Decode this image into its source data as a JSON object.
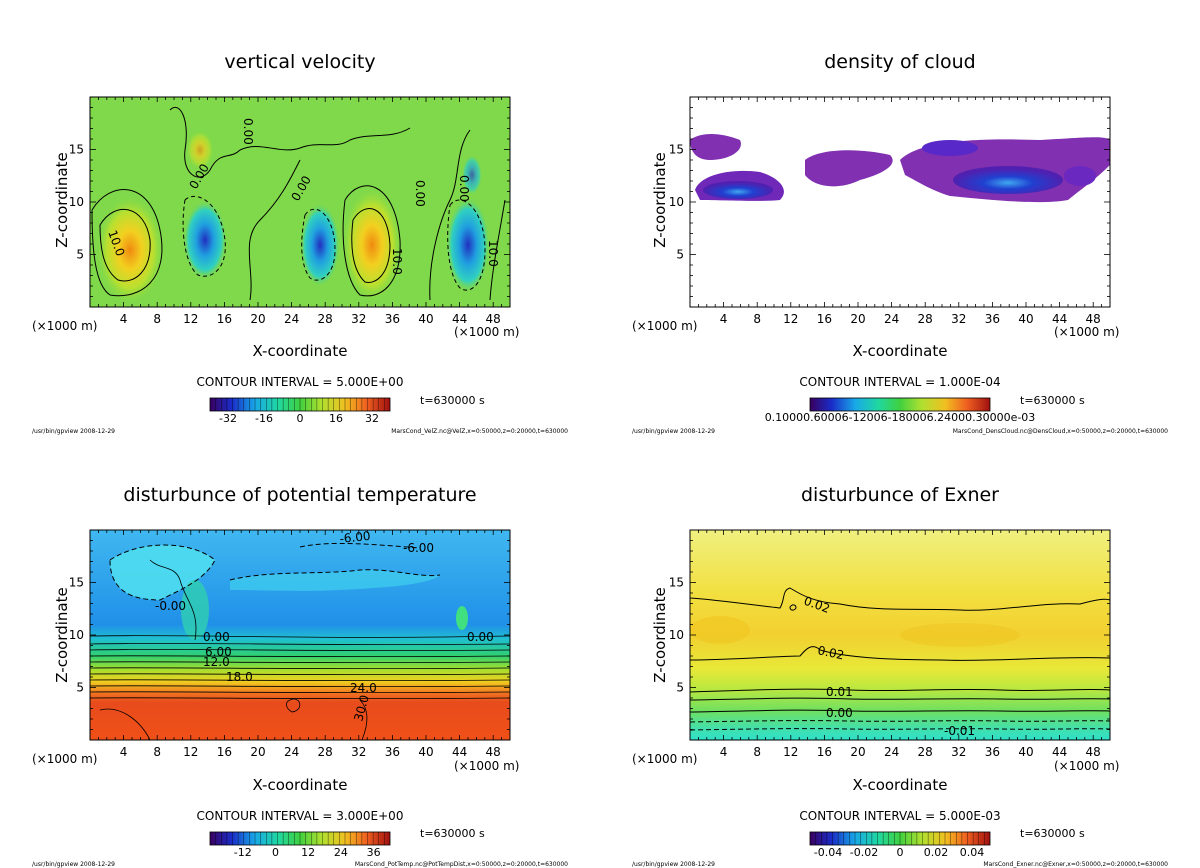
{
  "chart_data": [
    {
      "type": "heatmap",
      "title": "vertical velocity",
      "xlabel": "X-coordinate",
      "ylabel": "Z-coordinate",
      "x_unit": "(×1000 m)",
      "xticks": [
        4,
        8,
        12,
        16,
        20,
        24,
        28,
        32,
        36,
        40,
        44,
        48
      ],
      "yticks": [
        5,
        10,
        15
      ],
      "xlim": [
        0,
        50
      ],
      "ylim": [
        0,
        20
      ],
      "contour_interval": "CONTOUR INTERVAL = 5.000E+00",
      "time": "t=630000 s",
      "colorbar": {
        "ticks": [
          "-32",
          "-16",
          "0",
          "16",
          "32"
        ],
        "range": [
          -40,
          40
        ]
      },
      "contour_labels": [
        "10.0",
        "0.00",
        "0.00",
        "0.00",
        "0.00",
        "10.0",
        "0.00",
        "10.0"
      ],
      "footer_left": "/usr/bin/gpview  2008-12-29",
      "footer_right": "MarsCond_VelZ.nc@VelZ,x=0:50000,z=0:20000,t=630000"
    },
    {
      "type": "heatmap",
      "title": "density of cloud",
      "xlabel": "X-coordinate",
      "ylabel": "Z-coordinate",
      "x_unit": "(×1000 m)",
      "xticks": [
        4,
        8,
        12,
        16,
        20,
        24,
        28,
        32,
        36,
        40,
        44,
        48
      ],
      "yticks": [
        5,
        10,
        15
      ],
      "xlim": [
        0,
        50
      ],
      "ylim": [
        0,
        20
      ],
      "contour_interval": "CONTOUR INTERVAL = 1.000E-04",
      "time": "t=630000 s",
      "colorbar": {
        "ticks": [
          "0.10000E-03"
        ],
        "overlapping_labels": "0.10000.60006-12006-180006.24000.30000e-03"
      },
      "footer_left": "/usr/bin/gpview  2008-12-29",
      "footer_right": "MarsCond_DensCloud.nc@DensCloud,x=0:50000,z=0:20000,t=630000"
    },
    {
      "type": "heatmap",
      "title": "disturbunce of potential temperature",
      "xlabel": "X-coordinate",
      "ylabel": "Z-coordinate",
      "x_unit": "(×1000 m)",
      "xticks": [
        4,
        8,
        12,
        16,
        20,
        24,
        28,
        32,
        36,
        40,
        44,
        48
      ],
      "yticks": [
        5,
        10,
        15
      ],
      "xlim": [
        0,
        50
      ],
      "ylim": [
        0,
        20
      ],
      "contour_interval": "CONTOUR INTERVAL = 3.000E+00",
      "time": "t=630000 s",
      "colorbar": {
        "ticks": [
          "-12",
          "0",
          "12",
          "24",
          "36"
        ],
        "range": [
          -24,
          42
        ]
      },
      "contour_labels": [
        "-6.00",
        "-6.00",
        "-0.00",
        "0.00",
        "0.00",
        "6.00",
        "12.0",
        "18.0",
        "24.0",
        "30.0"
      ],
      "footer_left": "/usr/bin/gpview  2008-12-29",
      "footer_right": "MarsCond_PotTemp.nc@PotTempDist,x=0:50000,z=0:20000,t=630000"
    },
    {
      "type": "heatmap",
      "title": "disturbunce of Exner",
      "xlabel": "X-coordinate",
      "ylabel": "Z-coordinate",
      "x_unit": "(×1000 m)",
      "xticks": [
        4,
        8,
        12,
        16,
        20,
        24,
        28,
        32,
        36,
        40,
        44,
        48
      ],
      "yticks": [
        5,
        10,
        15
      ],
      "xlim": [
        0,
        50
      ],
      "ylim": [
        0,
        20
      ],
      "contour_interval": "CONTOUR INTERVAL = 5.000E-03",
      "time": "t=630000 s",
      "colorbar": {
        "ticks": [
          "-0.04",
          "-0.02",
          "0",
          "0.02",
          "0.04"
        ],
        "range": [
          -0.05,
          0.05
        ]
      },
      "contour_labels": [
        "0.02",
        "0.02",
        "0.01",
        "0.00",
        "-0.01"
      ],
      "footer_left": "/usr/bin/gpview  2008-12-29",
      "footer_right": "MarsCond_Exner.nc@Exner,x=0:50000,z=0:20000,t=630000"
    }
  ]
}
